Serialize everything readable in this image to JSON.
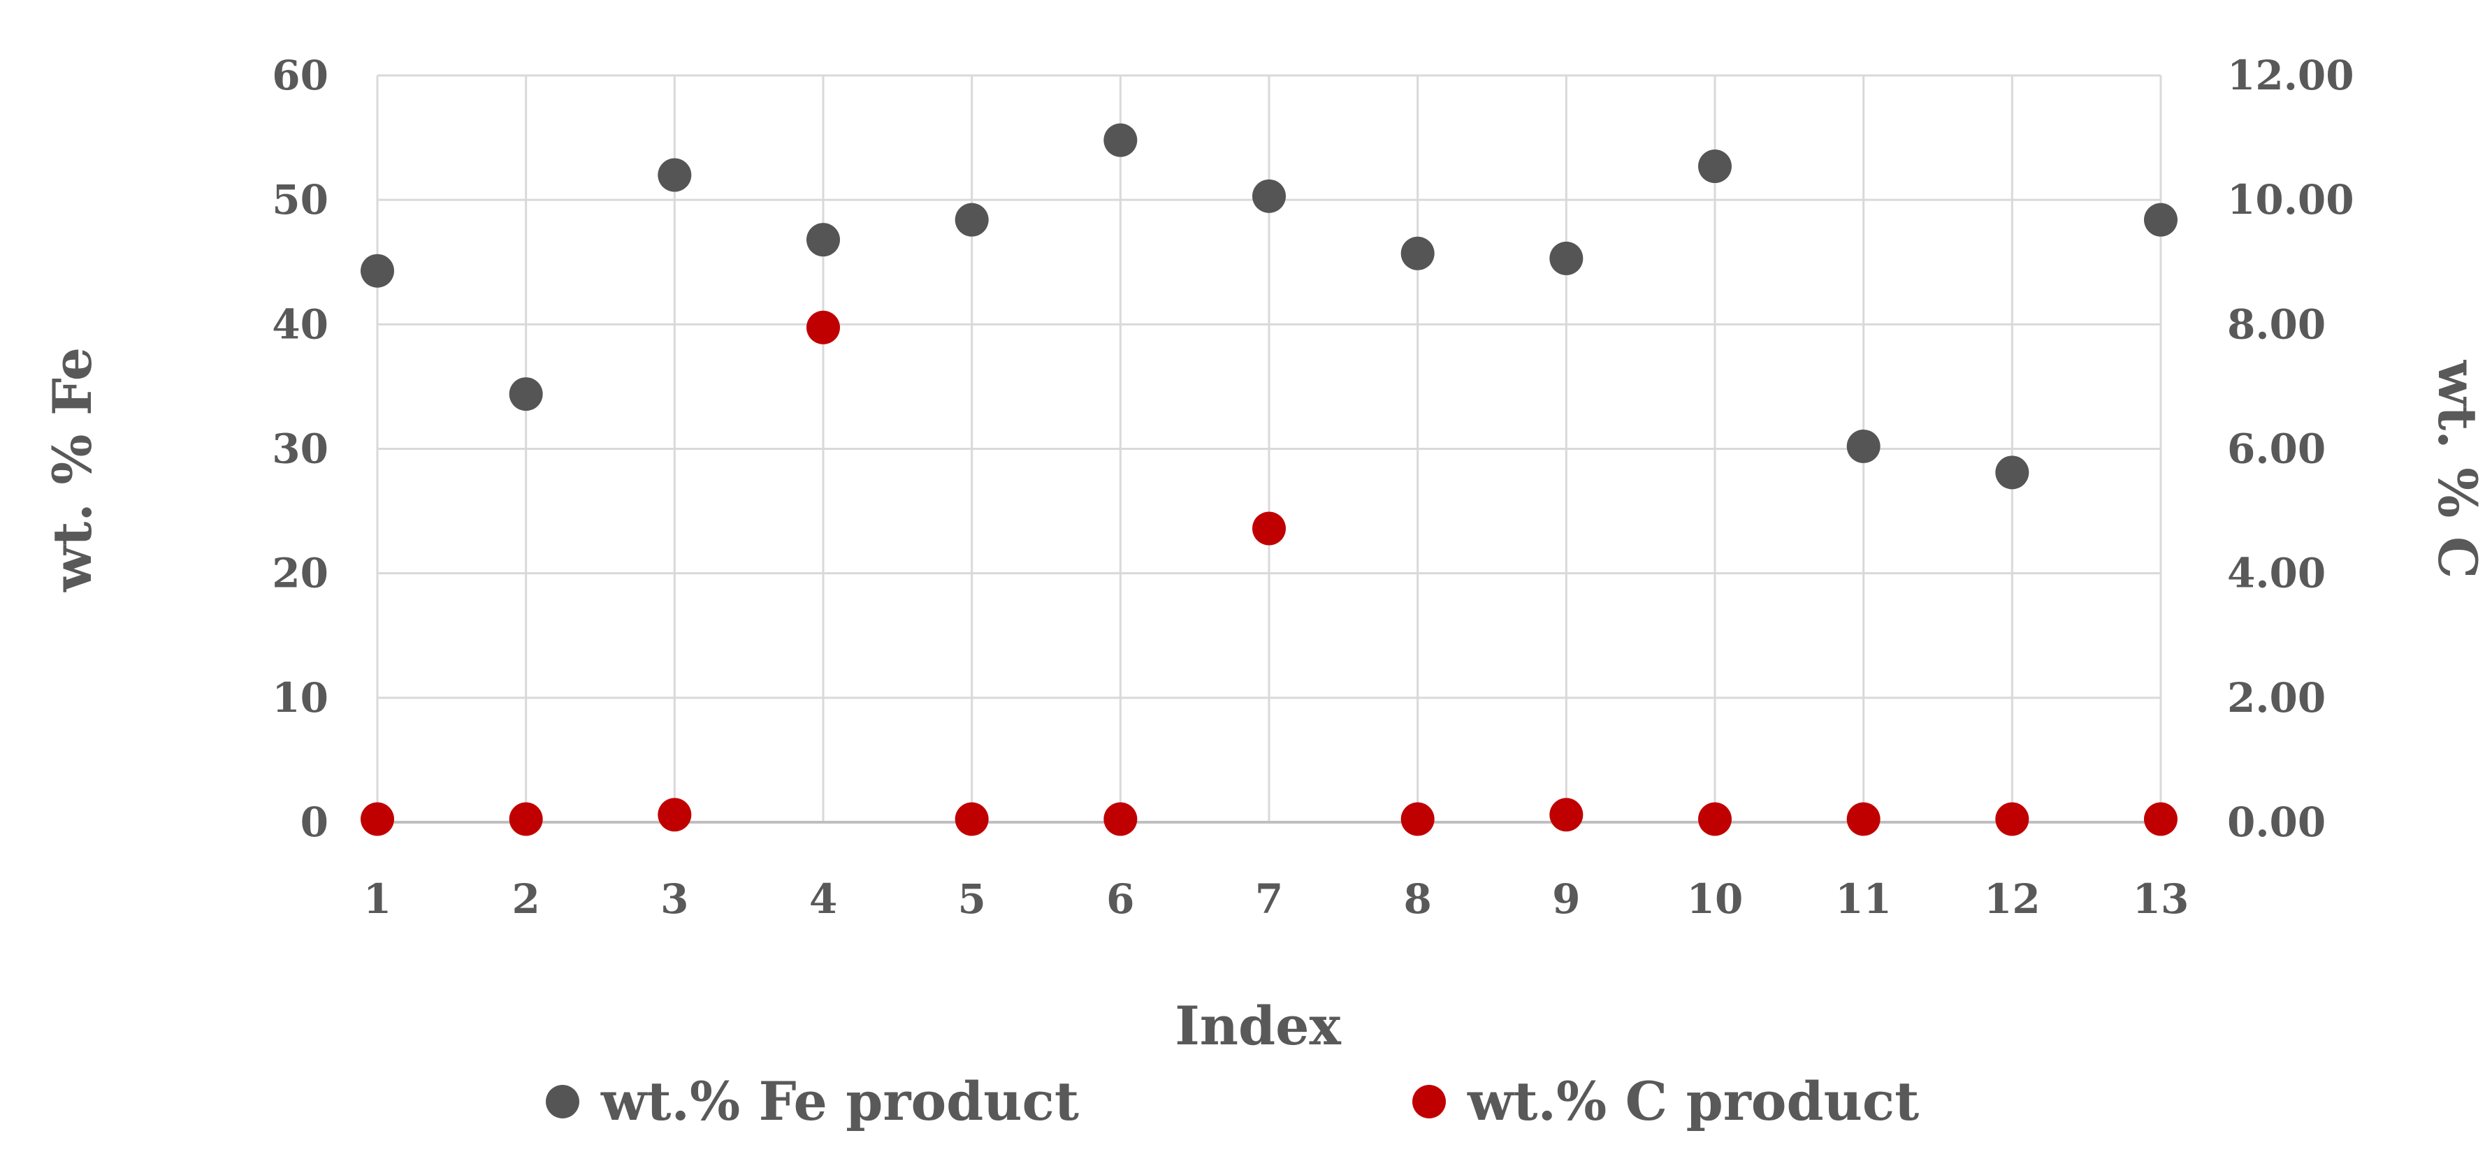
{
  "chart_data": {
    "type": "scatter",
    "xlabel": "Index",
    "ylabel_left": "wt. % Fe",
    "ylabel_right": "wt. % C",
    "x": [
      1,
      2,
      3,
      4,
      5,
      6,
      7,
      8,
      9,
      10,
      11,
      12,
      13
    ],
    "x_tick_labels": [
      "1",
      "2",
      "3",
      "4",
      "5",
      "6",
      "7",
      "8",
      "9",
      "10",
      "11",
      "12",
      "13"
    ],
    "ylim_left": [
      0,
      60
    ],
    "ylim_right": [
      0,
      12
    ],
    "y_left_tick_labels": [
      "0",
      "10",
      "20",
      "30",
      "40",
      "50",
      "60"
    ],
    "y_right_tick_labels": [
      "0.00",
      "2.00",
      "4.00",
      "6.00",
      "8.00",
      "10.00",
      "12.00"
    ],
    "grid": true,
    "legend_position": "bottom",
    "series": [
      {
        "name": "wt.% Fe product",
        "axis": "left",
        "color": "#555555",
        "values": [
          44.3,
          34.4,
          52.0,
          46.8,
          48.4,
          54.8,
          50.3,
          45.7,
          45.3,
          52.7,
          30.2,
          28.1,
          48.4
        ]
      },
      {
        "name": "wt.% C product",
        "axis": "right",
        "color": "#c00000",
        "values": [
          0.05,
          0.05,
          0.12,
          7.95,
          0.05,
          0.05,
          4.72,
          0.05,
          0.12,
          0.05,
          0.05,
          0.05,
          0.05
        ]
      }
    ]
  }
}
